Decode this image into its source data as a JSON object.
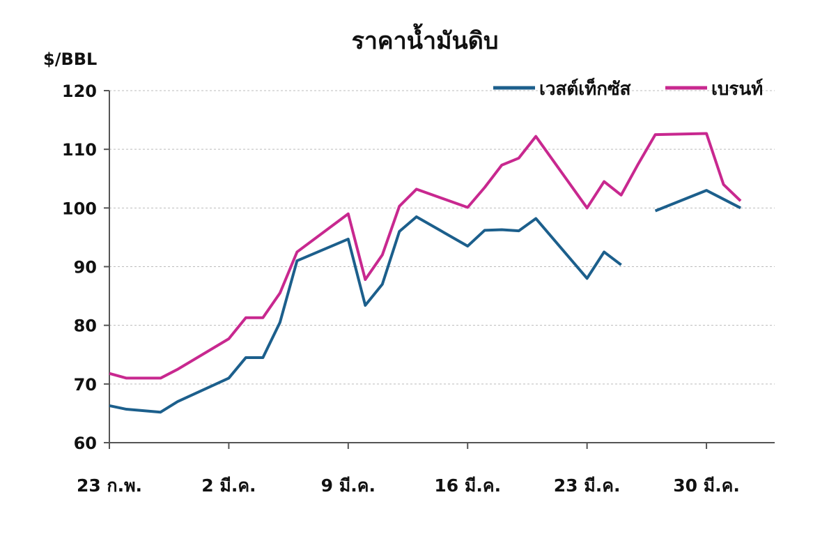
{
  "chart_data": {
    "type": "line",
    "title": "ราคาน้ำมันดิบ",
    "y_label": "$/BBL",
    "x": [
      0,
      1,
      3,
      4,
      7,
      8,
      9,
      10,
      11,
      14,
      15,
      16,
      17,
      18,
      21,
      22,
      23,
      24,
      25,
      28,
      29,
      30,
      31,
      32,
      35,
      36,
      37
    ],
    "xlim": [
      0,
      39
    ],
    "xticks": [
      {
        "value": 0,
        "label": "23 ก.พ."
      },
      {
        "value": 7,
        "label": "2 มี.ค."
      },
      {
        "value": 14,
        "label": "9 มี.ค."
      },
      {
        "value": 21,
        "label": "16 มี.ค."
      },
      {
        "value": 28,
        "label": "23 มี.ค."
      },
      {
        "value": 35,
        "label": "30 มี.ค."
      }
    ],
    "ylim": [
      60,
      120
    ],
    "yticks": [
      60,
      70,
      80,
      90,
      100,
      110,
      120
    ],
    "grid": true,
    "legend": "top-right",
    "series": [
      {
        "name": "เวสต์เท็กซัส",
        "color": "#1c5f8c",
        "values": [
          66.3,
          65.7,
          65.2,
          67,
          71,
          74.5,
          74.5,
          80.5,
          91,
          94.7,
          83.4,
          87,
          96,
          98.5,
          93.5,
          96.2,
          96.3,
          96.1,
          98.2,
          88,
          92.5,
          90.3,
          null,
          99.5,
          103,
          101.5,
          100
        ]
      },
      {
        "name": "เบรนท์",
        "color": "#c8288f",
        "values": [
          71.8,
          71,
          71,
          72.5,
          77.7,
          81.3,
          81.3,
          85.5,
          92.5,
          99,
          87.8,
          92,
          100.3,
          103.2,
          100.1,
          103.5,
          107.3,
          108.5,
          112.2,
          100,
          104.5,
          102.2,
          107.5,
          112.5,
          112.7,
          104,
          101.2
        ]
      }
    ]
  }
}
